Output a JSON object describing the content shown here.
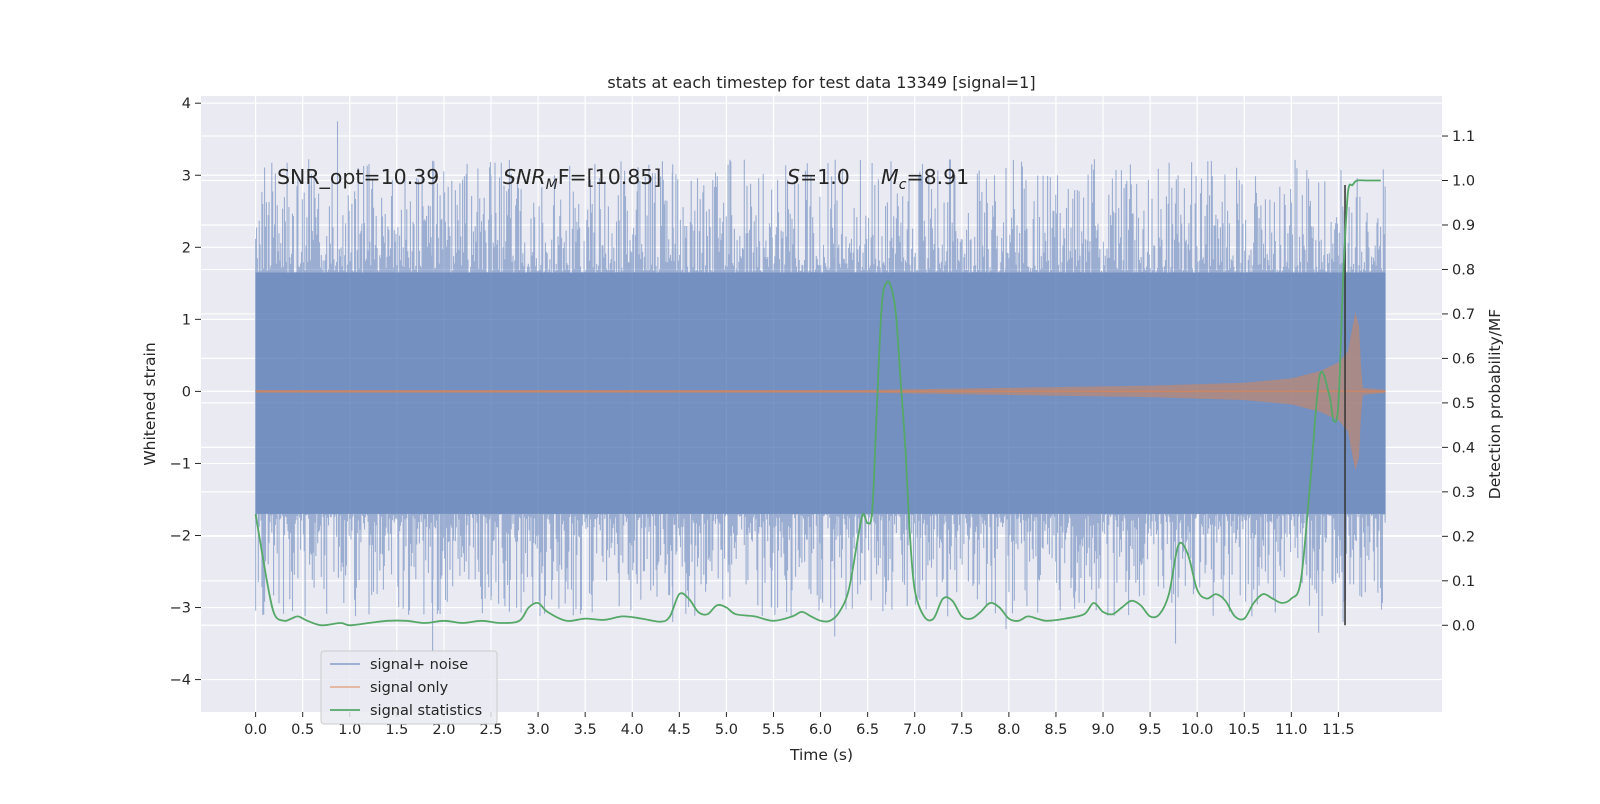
{
  "chart_data": {
    "type": "line",
    "title": "stats at each timestep for test data 13349 [signal=1]",
    "xlabel": "Time (s)",
    "ylabel_left": "Whitened strain",
    "ylabel_right": "Detection probability/MF",
    "xlim": [
      -0.58,
      12.6
    ],
    "ylim_left": [
      -4.45,
      4.1
    ],
    "ylim_right": [
      -0.195,
      1.19
    ],
    "x_ticks": [
      "0.0",
      "0.5",
      "1.0",
      "1.5",
      "2.0",
      "2.5",
      "3.0",
      "3.5",
      "4.0",
      "4.5",
      "5.0",
      "5.5",
      "6.0",
      "6.5",
      "7.0",
      "7.5",
      "8.0",
      "8.5",
      "9.0",
      "9.5",
      "10.0",
      "10.5",
      "11.0",
      "11.5"
    ],
    "y_ticks_left": [
      "4",
      "3",
      "2",
      "1",
      "0",
      "−1",
      "−2",
      "−3",
      "−4"
    ],
    "y_ticks_right": [
      "1.1",
      "1.0",
      "0.9",
      "0.8",
      "0.7",
      "0.6",
      "0.5",
      "0.4",
      "0.3",
      "0.2",
      "0.1",
      "0.0"
    ],
    "grid": true,
    "legend_position": "lower-left",
    "annotations": {
      "snr_opt": "SNR_opt=10.39",
      "snr_mf": "SNR",
      "snr_mf_sub": "M",
      "snr_mf_rest": "F=[10.85]",
      "s_italic": "S",
      "s_rest": "=1.0",
      "mc_italic": "M",
      "mc_sub": "c",
      "mc_rest": "=8.91"
    },
    "detection_time": 11.57,
    "signal_only_envelope": {
      "x": [
        0.0,
        6.5,
        7.5,
        8.5,
        9.5,
        10.5,
        11.0,
        11.3,
        11.5,
        11.6,
        11.68,
        11.72,
        11.75,
        12.0
      ],
      "amplitude": [
        0.02,
        0.02,
        0.04,
        0.06,
        0.08,
        0.12,
        0.18,
        0.28,
        0.4,
        0.55,
        1.1,
        0.9,
        0.05,
        0.02
      ]
    },
    "series": [
      {
        "name": "signal+ noise",
        "color": "#4c72b0",
        "core_band": [
          -1.7,
          1.65
        ],
        "spike_extent": [
          -3.6,
          3.75
        ],
        "x_range": [
          0.0,
          12.0
        ]
      },
      {
        "name": "signal only",
        "color": "#dd8452"
      },
      {
        "name": "signal statistics",
        "color": "#55a868",
        "x": [
          0.0,
          0.12,
          0.2,
          0.3,
          0.38,
          0.45,
          0.55,
          0.7,
          0.9,
          1.0,
          1.2,
          1.4,
          1.6,
          1.8,
          2.0,
          2.2,
          2.4,
          2.6,
          2.8,
          2.9,
          3.0,
          3.1,
          3.3,
          3.5,
          3.7,
          3.9,
          4.1,
          4.3,
          4.4,
          4.5,
          4.6,
          4.7,
          4.8,
          4.9,
          5.0,
          5.1,
          5.3,
          5.5,
          5.7,
          5.8,
          5.9,
          6.0,
          6.1,
          6.2,
          6.3,
          6.4,
          6.45,
          6.5,
          6.55,
          6.6,
          6.65,
          6.7,
          6.75,
          6.8,
          6.85,
          6.9,
          6.95,
          7.0,
          7.1,
          7.2,
          7.3,
          7.4,
          7.5,
          7.6,
          7.7,
          7.8,
          7.9,
          8.0,
          8.1,
          8.2,
          8.3,
          8.4,
          8.6,
          8.8,
          8.9,
          9.0,
          9.1,
          9.2,
          9.3,
          9.4,
          9.5,
          9.6,
          9.7,
          9.8,
          9.9,
          10.0,
          10.1,
          10.2,
          10.3,
          10.4,
          10.5,
          10.6,
          10.7,
          10.8,
          10.9,
          11.0,
          11.1,
          11.2,
          11.3,
          11.4,
          11.45,
          11.5,
          11.55,
          11.6,
          11.65,
          11.7,
          11.8,
          11.9,
          11.95
        ],
        "values": [
          0.25,
          0.1,
          0.025,
          0.01,
          0.015,
          0.02,
          0.01,
          0.0,
          0.005,
          0.0,
          0.005,
          0.01,
          0.01,
          0.005,
          0.01,
          0.005,
          0.01,
          0.005,
          0.01,
          0.04,
          0.05,
          0.03,
          0.01,
          0.015,
          0.012,
          0.02,
          0.015,
          0.008,
          0.02,
          0.07,
          0.06,
          0.03,
          0.025,
          0.045,
          0.04,
          0.025,
          0.02,
          0.01,
          0.02,
          0.03,
          0.02,
          0.01,
          0.01,
          0.03,
          0.08,
          0.2,
          0.25,
          0.23,
          0.26,
          0.5,
          0.72,
          0.77,
          0.76,
          0.7,
          0.55,
          0.4,
          0.2,
          0.08,
          0.02,
          0.015,
          0.06,
          0.055,
          0.02,
          0.015,
          0.03,
          0.05,
          0.04,
          0.015,
          0.01,
          0.02,
          0.015,
          0.01,
          0.015,
          0.025,
          0.05,
          0.03,
          0.025,
          0.04,
          0.055,
          0.045,
          0.02,
          0.025,
          0.07,
          0.18,
          0.16,
          0.08,
          0.06,
          0.07,
          0.055,
          0.02,
          0.015,
          0.05,
          0.07,
          0.06,
          0.05,
          0.06,
          0.1,
          0.32,
          0.56,
          0.52,
          0.46,
          0.5,
          0.78,
          0.97,
          0.99,
          1.0,
          1.0,
          1.0,
          1.0
        ]
      }
    ]
  }
}
